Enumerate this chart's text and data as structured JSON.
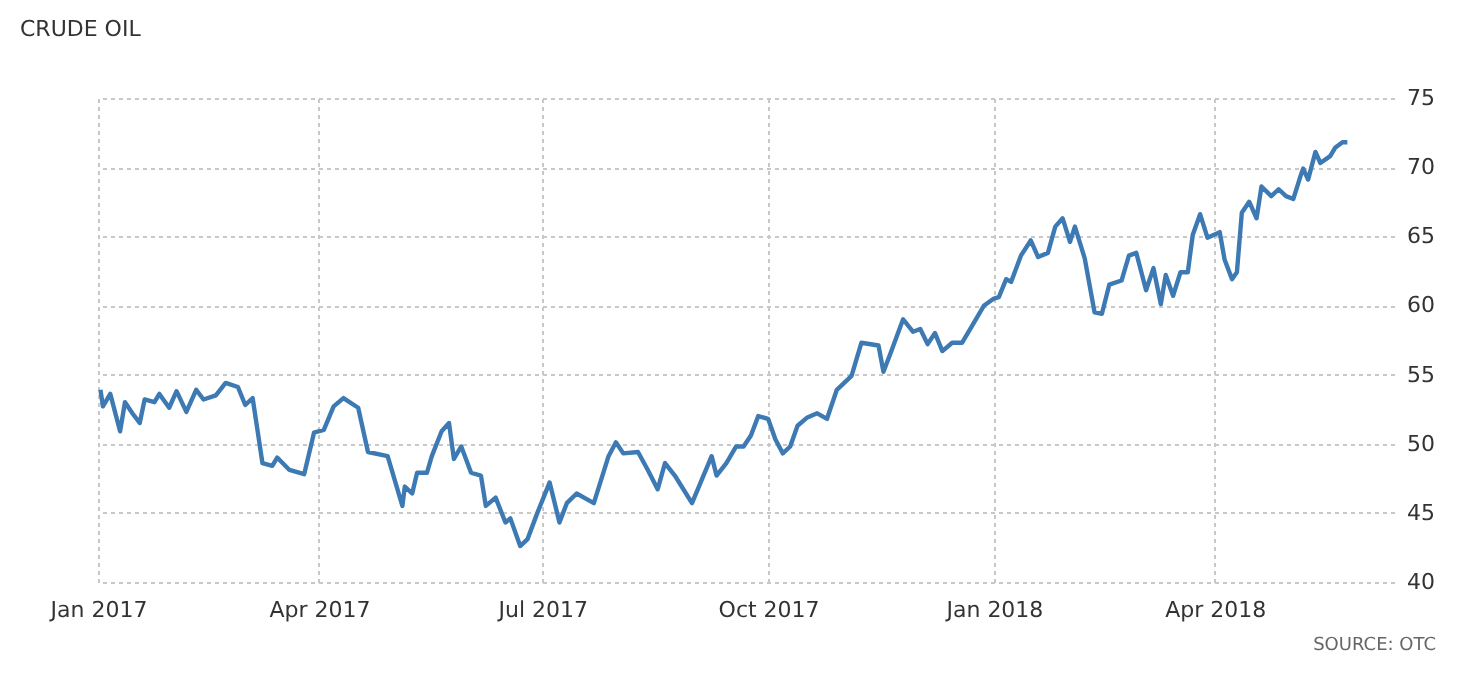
{
  "chart_data": {
    "type": "line",
    "title": "CRUDE OIL",
    "annotations": [
      "SOURCE: OTC"
    ],
    "xlim": [
      "2017-01-01",
      "2018-06-13"
    ],
    "ylim": [
      40,
      75
    ],
    "yticks": [
      40,
      45,
      50,
      55,
      60,
      65,
      70,
      75
    ],
    "xticks": [
      {
        "value": "2017-01-01",
        "label": "Jan 2017"
      },
      {
        "value": "2017-04-01",
        "label": "Apr 2017"
      },
      {
        "value": "2017-07-01",
        "label": "Jul 2017"
      },
      {
        "value": "2017-10-01",
        "label": "Oct 2017"
      },
      {
        "value": "2018-01-01",
        "label": "Jan 2018"
      },
      {
        "value": "2018-04-01",
        "label": "Apr 2018"
      }
    ],
    "grid": true,
    "legend": false,
    "marker": "none",
    "line_style": "solid",
    "x": [
      "2017-01-02",
      "2017-01-03",
      "2017-01-06",
      "2017-01-10",
      "2017-01-12",
      "2017-01-15",
      "2017-01-18",
      "2017-01-20",
      "2017-01-24",
      "2017-01-26",
      "2017-01-30",
      "2017-02-02",
      "2017-02-06",
      "2017-02-10",
      "2017-02-13",
      "2017-02-18",
      "2017-02-22",
      "2017-02-27",
      "2017-03-02",
      "2017-03-05",
      "2017-03-09",
      "2017-03-13",
      "2017-03-15",
      "2017-03-20",
      "2017-03-26",
      "2017-03-30",
      "2017-04-03",
      "2017-04-07",
      "2017-04-11",
      "2017-04-17",
      "2017-04-21",
      "2017-04-29",
      "2017-05-05",
      "2017-05-06",
      "2017-05-09",
      "2017-05-11",
      "2017-05-15",
      "2017-05-17",
      "2017-05-21",
      "2017-05-24",
      "2017-05-26",
      "2017-05-29",
      "2017-06-02",
      "2017-06-06",
      "2017-06-08",
      "2017-06-12",
      "2017-06-16",
      "2017-06-18",
      "2017-06-22",
      "2017-06-25",
      "2017-06-29",
      "2017-07-04",
      "2017-07-08",
      "2017-07-11",
      "2017-07-15",
      "2017-07-18",
      "2017-07-22",
      "2017-07-28",
      "2017-07-31",
      "2017-08-03",
      "2017-08-09",
      "2017-08-13",
      "2017-08-17",
      "2017-08-20",
      "2017-08-24",
      "2017-08-31",
      "2017-09-04",
      "2017-09-08",
      "2017-09-10",
      "2017-09-14",
      "2017-09-18",
      "2017-09-21",
      "2017-09-24",
      "2017-09-27",
      "2017-10-01",
      "2017-10-04",
      "2017-10-07",
      "2017-10-10",
      "2017-10-13",
      "2017-10-17",
      "2017-10-21",
      "2017-10-25",
      "2017-10-29",
      "2017-11-04",
      "2017-11-08",
      "2017-11-15",
      "2017-11-17",
      "2017-11-20",
      "2017-11-25",
      "2017-11-29",
      "2017-12-02",
      "2017-12-05",
      "2017-12-08",
      "2017-12-11",
      "2017-12-15",
      "2017-12-19",
      "2017-12-24",
      "2017-12-28",
      "2018-01-01",
      "2018-01-03",
      "2018-01-06",
      "2018-01-08",
      "2018-01-12",
      "2018-01-16",
      "2018-01-19",
      "2018-01-23",
      "2018-01-26",
      "2018-01-29",
      "2018-02-01",
      "2018-02-03",
      "2018-02-07",
      "2018-02-11",
      "2018-02-14",
      "2018-02-17",
      "2018-02-22",
      "2018-02-25",
      "2018-02-28",
      "2018-03-04",
      "2018-03-07",
      "2018-03-10",
      "2018-03-12",
      "2018-03-15",
      "2018-03-18",
      "2018-03-21",
      "2018-03-23",
      "2018-03-26",
      "2018-03-29",
      "2018-04-03",
      "2018-04-05",
      "2018-04-08",
      "2018-04-10",
      "2018-04-12",
      "2018-04-15",
      "2018-04-18",
      "2018-04-20",
      "2018-04-24",
      "2018-04-27",
      "2018-04-30",
      "2018-05-03",
      "2018-05-06",
      "2018-05-07",
      "2018-05-09",
      "2018-05-12",
      "2018-05-14",
      "2018-05-18",
      "2018-05-20",
      "2018-05-23",
      "2018-05-25"
    ],
    "series": [
      {
        "color": "#3d7ab3",
        "values": [
          53.9,
          52.7,
          53.6,
          50.9,
          53.0,
          52.2,
          51.5,
          53.2,
          53.0,
          53.6,
          52.6,
          53.8,
          52.3,
          53.9,
          53.2,
          53.5,
          54.4,
          54.1,
          52.8,
          53.3,
          48.6,
          48.4,
          49.0,
          48.1,
          47.8,
          50.8,
          51.0,
          52.7,
          53.3,
          52.6,
          49.4,
          49.1,
          45.5,
          46.9,
          46.4,
          47.9,
          47.9,
          49.1,
          50.9,
          51.5,
          48.9,
          49.8,
          47.9,
          47.7,
          45.5,
          46.1,
          44.3,
          44.6,
          42.6,
          43.1,
          45.0,
          47.2,
          44.3,
          45.7,
          46.4,
          46.1,
          45.7,
          49.1,
          50.1,
          49.3,
          49.4,
          48.1,
          46.7,
          48.6,
          47.7,
          45.7,
          47.4,
          49.1,
          47.7,
          48.6,
          49.8,
          49.8,
          50.6,
          52.0,
          51.8,
          50.3,
          49.3,
          49.8,
          51.3,
          51.9,
          52.2,
          51.8,
          53.9,
          54.9,
          57.3,
          57.1,
          55.2,
          56.6,
          59.0,
          58.1,
          58.3,
          57.2,
          58.0,
          56.7,
          57.3,
          57.3,
          58.8,
          60.0,
          60.5,
          60.6,
          61.9,
          61.7,
          63.6,
          64.7,
          63.5,
          63.8,
          65.7,
          66.3,
          64.6,
          65.7,
          63.4,
          59.5,
          59.4,
          61.5,
          61.8,
          63.6,
          63.8,
          61.1,
          62.7,
          60.1,
          62.2,
          60.7,
          62.4,
          62.4,
          65.1,
          66.6,
          64.9,
          65.3,
          63.3,
          61.9,
          62.4,
          66.7,
          67.5,
          66.3,
          68.6,
          67.9,
          68.4,
          67.9,
          67.7,
          69.4,
          69.9,
          69.1,
          71.1,
          70.3,
          70.8,
          71.4,
          71.8,
          71.8
        ]
      }
    ]
  }
}
